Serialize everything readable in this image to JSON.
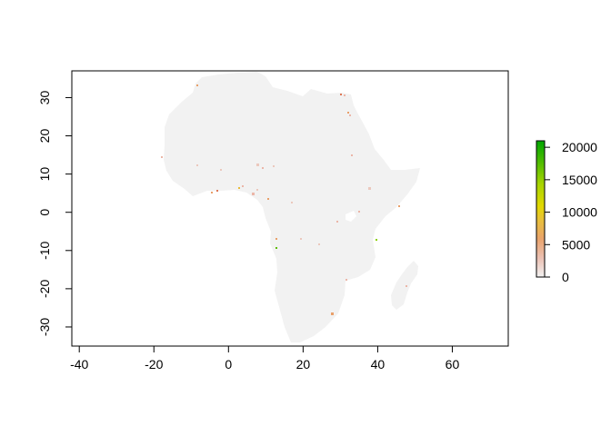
{
  "map": {
    "x_axis": {
      "range": [
        -42,
        75
      ],
      "ticks": [
        -40,
        -20,
        0,
        20,
        40,
        60
      ],
      "tick_labels": [
        "-40",
        "-20",
        "0",
        "20",
        "40",
        "60"
      ]
    },
    "y_axis": {
      "range": [
        -35,
        37
      ],
      "ticks": [
        -30,
        -20,
        -10,
        0,
        10,
        20,
        30
      ],
      "tick_labels": [
        "-30",
        "-20",
        "-10",
        "0",
        "10",
        "20",
        "30"
      ]
    },
    "land_color": "#f2f2f2",
    "legend": {
      "placement": "right",
      "range": [
        0,
        21000
      ],
      "ticks": [
        0,
        5000,
        10000,
        15000,
        20000
      ],
      "tick_labels": [
        "0",
        "5000",
        "10000",
        "15000",
        "20000"
      ],
      "colors": [
        "#f2f2f2",
        "#ebb6a8",
        "#e9a06a",
        "#e8bb3a",
        "#dce000",
        "#8cd000",
        "#3cb800",
        "#00a600"
      ]
    }
  }
}
